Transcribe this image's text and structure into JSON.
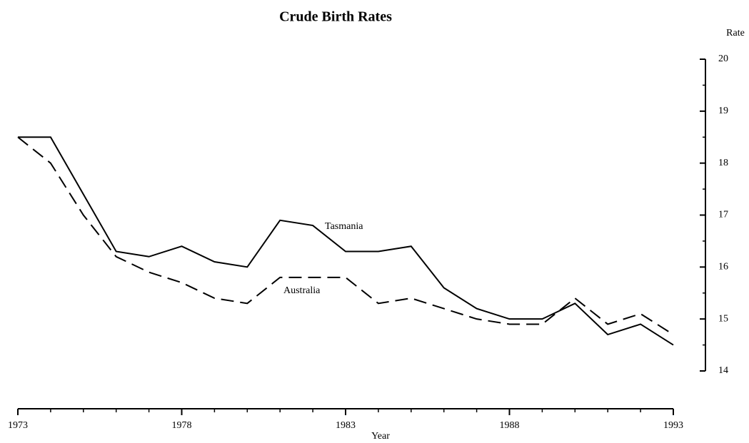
{
  "chart_data": {
    "type": "line",
    "title": "Crude Birth Rates",
    "x_label": "Year",
    "y_label": "Rate",
    "x": [
      1973,
      1974,
      1975,
      1976,
      1977,
      1978,
      1979,
      1980,
      1981,
      1982,
      1983,
      1984,
      1985,
      1986,
      1987,
      1988,
      1989,
      1990,
      1991,
      1992,
      1993
    ],
    "series": [
      {
        "name": "Tasmania",
        "color": "#000000",
        "style": "solid",
        "values": [
          18.5,
          18.5,
          17.4,
          16.3,
          16.2,
          16.4,
          16.1,
          16.0,
          16.9,
          16.8,
          16.3,
          16.3,
          16.4,
          15.6,
          15.2,
          15.0,
          15.0,
          15.3,
          14.7,
          14.9,
          14.5
        ]
      },
      {
        "name": "Australia",
        "color": "#000000",
        "style": "dashed",
        "values": [
          18.5,
          18.0,
          17.0,
          16.2,
          15.9,
          15.7,
          15.4,
          15.3,
          15.8,
          15.8,
          15.8,
          15.3,
          15.4,
          15.2,
          15.0,
          14.9,
          14.9,
          15.4,
          14.9,
          15.1,
          14.7
        ]
      }
    ],
    "xlim": [
      1973,
      1993
    ],
    "xticks": [
      1973,
      1978,
      1983,
      1988,
      1993
    ],
    "ylim": [
      14,
      20
    ],
    "yticks": [
      14,
      15,
      16,
      17,
      18,
      19,
      20
    ],
    "y_axis_side": "right",
    "grid": false
  }
}
